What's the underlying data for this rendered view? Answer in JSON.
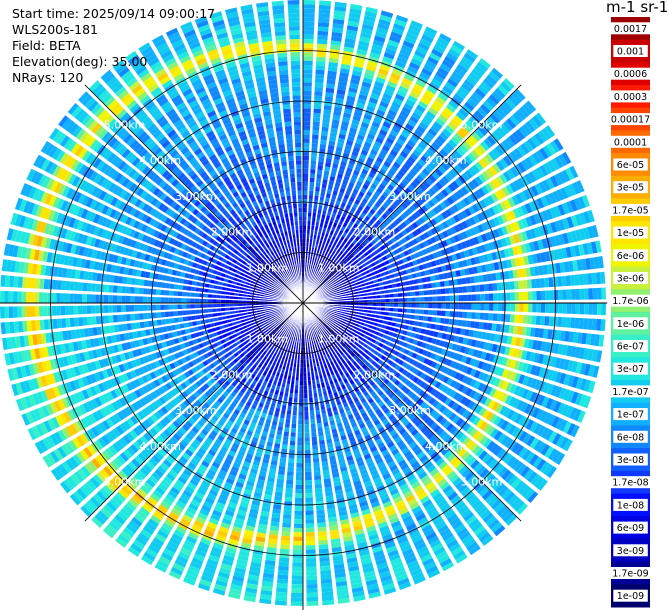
{
  "info": {
    "start_time": "Start time: 2025/09/14 09:00:17",
    "instrument": "WLS200s-181",
    "field": "Field: BETA",
    "elevation": "Elevation(deg): 35.00",
    "nrays": "NRays: 120"
  },
  "colorbar": {
    "title": "m-1 sr-1",
    "labels": [
      "0.0017",
      "0.001",
      "0.0006",
      "0.0003",
      "0.00017",
      "0.0001",
      "6e-05",
      "3e-05",
      "1.7e-05",
      "1e-05",
      "6e-06",
      "3e-06",
      "1.7e-06",
      "1e-06",
      "6e-07",
      "3e-07",
      "1.7e-07",
      "1e-07",
      "6e-08",
      "3e-08",
      "1.7e-08",
      "1e-08",
      "6e-09",
      "3e-09",
      "1.7e-09",
      "1e-09"
    ],
    "colors": [
      "#9e0000",
      "#c80000",
      "#e00000",
      "#ff1a00",
      "#ff4400",
      "#ff6a00",
      "#ff8c00",
      "#ffae00",
      "#ffcc00",
      "#ffe600",
      "#f0f400",
      "#c8f03c",
      "#90f070",
      "#5ff0a0",
      "#38f0c8",
      "#20e8e0",
      "#10ccf0",
      "#10b0ff",
      "#1088ff",
      "#1060ff",
      "#1038ff",
      "#0010ff",
      "#0000e0",
      "#0000c0",
      "#000096",
      "#00006e"
    ]
  },
  "chart_data": {
    "type": "heatmap",
    "projection": "polar",
    "rays": 120,
    "max_range_km": 6,
    "range_rings_km": [
      1,
      2,
      3,
      4,
      5
    ],
    "ring_labels": [
      "1.00km",
      "2.00km",
      "3.00km",
      "4.00km",
      "5.00km"
    ],
    "field": "BETA",
    "elevation_deg": 35.0,
    "grid": true
  }
}
